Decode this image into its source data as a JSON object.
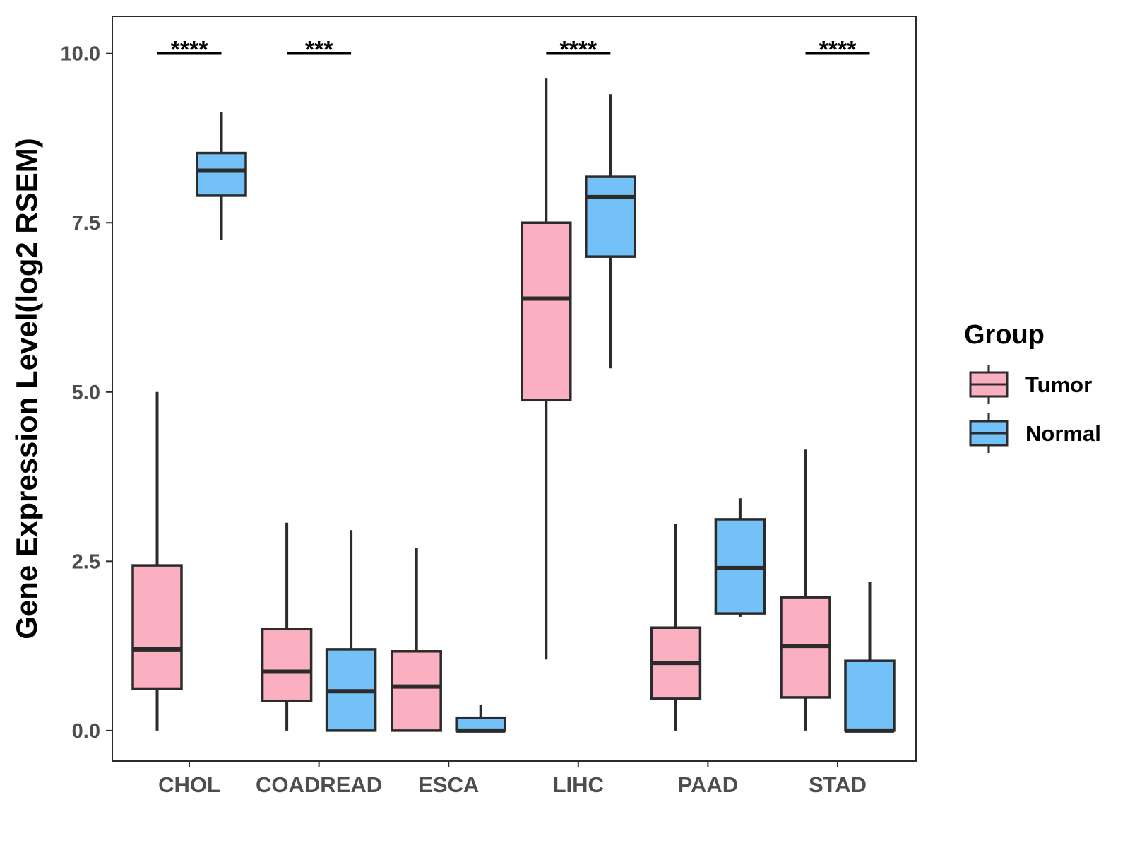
{
  "chart_data": {
    "type": "boxplot",
    "title": "",
    "xlabel": "",
    "ylabel": "Gene Expression Level(log2 RSEM)",
    "ylim": [
      -0.45,
      10.55
    ],
    "yticks": [
      "0.0",
      "2.5",
      "5.0",
      "7.5",
      "10.0"
    ],
    "categories": [
      "CHOL",
      "COADREAD",
      "ESCA",
      "LIHC",
      "PAAD",
      "STAD"
    ],
    "series": [
      {
        "name": "Tumor",
        "color": "#FBB0C2",
        "boxes": [
          {
            "lower_whisker": 0.0,
            "q1": 0.62,
            "median": 1.2,
            "q3": 2.44,
            "upper_whisker": 5.0
          },
          {
            "lower_whisker": 0.0,
            "q1": 0.44,
            "median": 0.87,
            "q3": 1.5,
            "upper_whisker": 3.07
          },
          {
            "lower_whisker": 0.0,
            "q1": 0.0,
            "median": 0.65,
            "q3": 1.17,
            "upper_whisker": 2.7
          },
          {
            "lower_whisker": 1.05,
            "q1": 4.88,
            "median": 6.38,
            "q3": 7.5,
            "upper_whisker": 9.63
          },
          {
            "lower_whisker": 0.0,
            "q1": 0.47,
            "median": 1.0,
            "q3": 1.52,
            "upper_whisker": 3.05
          },
          {
            "lower_whisker": 0.0,
            "q1": 0.49,
            "median": 1.25,
            "q3": 1.97,
            "upper_whisker": 4.15
          }
        ]
      },
      {
        "name": "Normal",
        "color": "#74C1F8",
        "boxes": [
          {
            "lower_whisker": 7.25,
            "q1": 7.9,
            "median": 8.27,
            "q3": 8.53,
            "upper_whisker": 9.13
          },
          {
            "lower_whisker": 0.0,
            "q1": 0.0,
            "median": 0.58,
            "q3": 1.2,
            "upper_whisker": 2.96
          },
          {
            "lower_whisker": 0.0,
            "q1": 0.0,
            "median": 0.0,
            "q3": 0.19,
            "upper_whisker": 0.38
          },
          {
            "lower_whisker": 5.35,
            "q1": 7.0,
            "median": 7.88,
            "q3": 8.18,
            "upper_whisker": 9.4
          },
          {
            "lower_whisker": 1.68,
            "q1": 1.73,
            "median": 2.4,
            "q3": 3.12,
            "upper_whisker": 3.43
          },
          {
            "lower_whisker": 0.0,
            "q1": 0.0,
            "median": 0.0,
            "q3": 1.03,
            "upper_whisker": 2.2
          }
        ]
      }
    ],
    "significance": [
      {
        "category": "CHOL",
        "label": "****"
      },
      {
        "category": "COADREAD",
        "label": "***"
      },
      {
        "category": "ESCA",
        "label": ""
      },
      {
        "category": "LIHC",
        "label": "****"
      },
      {
        "category": "PAAD",
        "label": ""
      },
      {
        "category": "STAD",
        "label": "****"
      }
    ],
    "significance_level": 10.0,
    "legend": {
      "title": "Group",
      "position": "right",
      "items": [
        {
          "label": "Tumor",
          "color": "#FBB0C2"
        },
        {
          "label": "Normal",
          "color": "#74C1F8"
        }
      ]
    },
    "style": {
      "line_color": "#2b2b2b",
      "tick_label_color": "#4d4d4d"
    }
  }
}
